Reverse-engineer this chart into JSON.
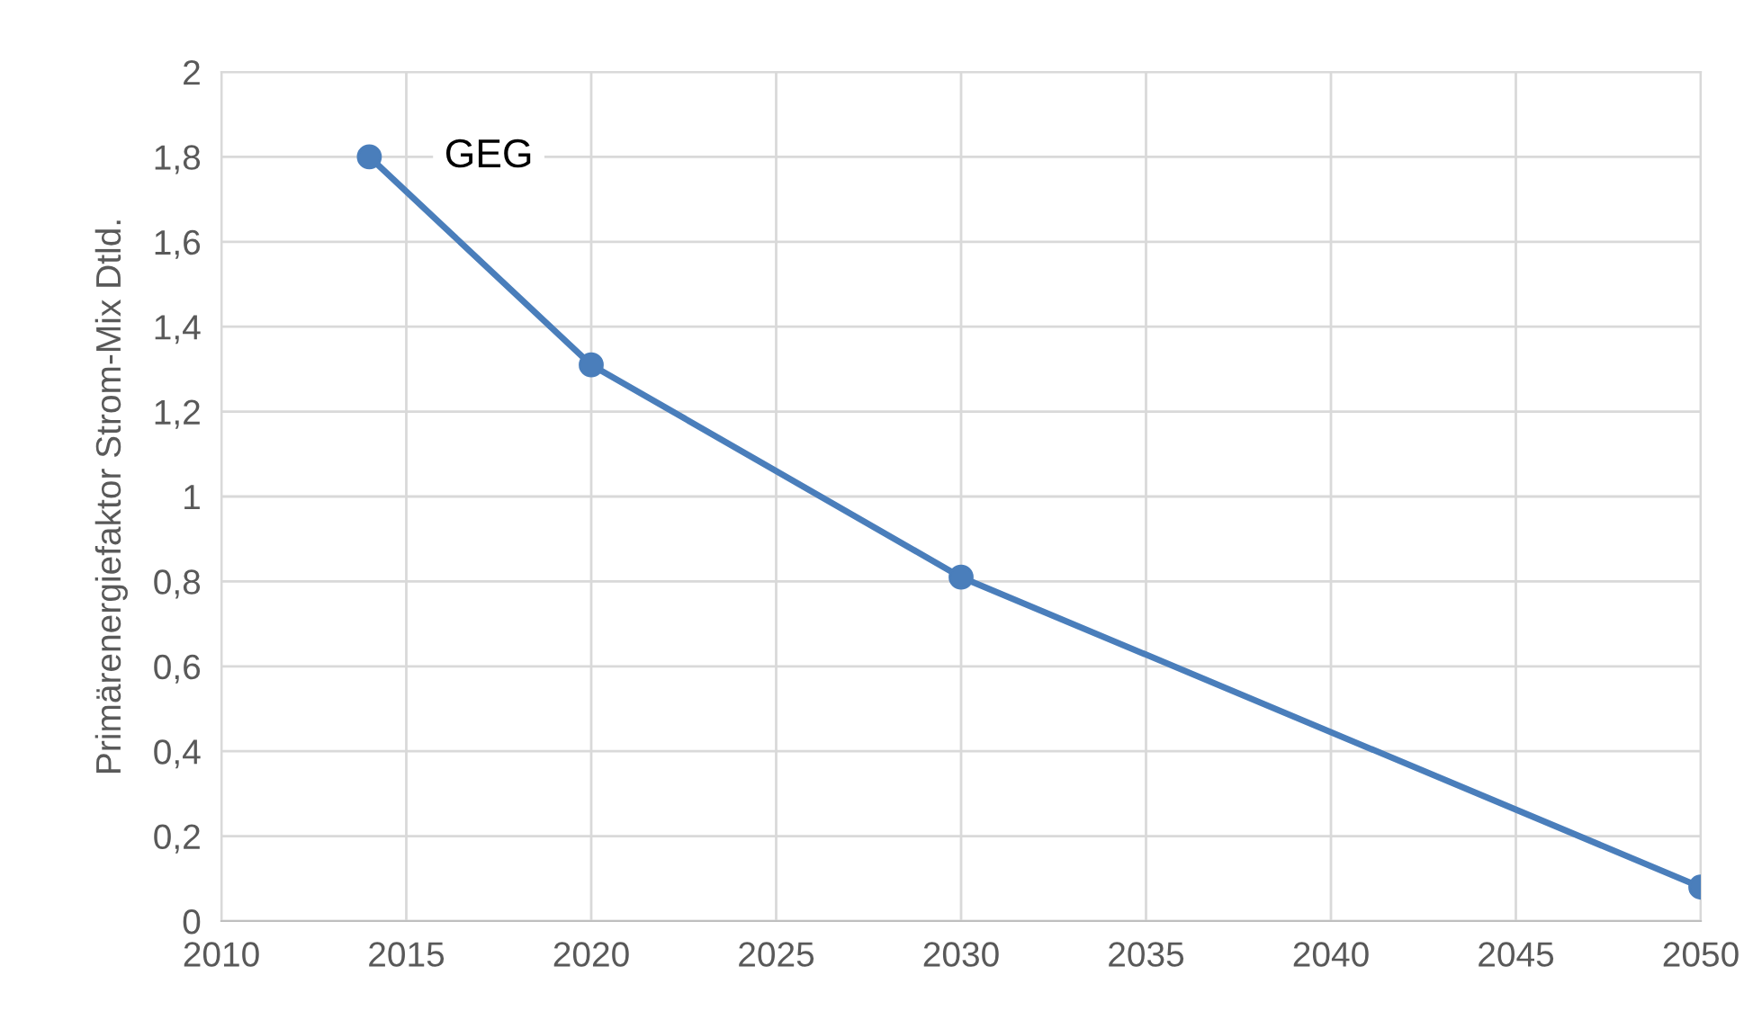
{
  "chart_data": {
    "type": "line",
    "ylabel": "Primärenergiefaktor Strom-Mix Dtld.",
    "x": [
      2014,
      2020,
      2030,
      2050
    ],
    "series": [
      {
        "color": "#4a7ebb",
        "values": [
          1.8,
          1.31,
          0.81,
          0.08
        ]
      }
    ],
    "xlim": [
      2010,
      2050
    ],
    "xticks": [
      2010,
      2015,
      2020,
      2025,
      2030,
      2035,
      2040,
      2045,
      2050
    ],
    "ylim": [
      0,
      2
    ],
    "yticks": [
      0,
      {
        "value": 0.2,
        "label": "0,2"
      },
      {
        "value": 0.4,
        "label": "0,4"
      },
      {
        "value": 0.6,
        "label": "0,6"
      },
      {
        "value": 0.8,
        "label": "0,8"
      },
      1,
      {
        "value": 1.2,
        "label": "1,2"
      },
      {
        "value": 1.4,
        "label": "1,4"
      },
      {
        "value": 1.6,
        "label": "1,6"
      },
      {
        "value": 1.8,
        "label": "1,8"
      },
      2
    ],
    "grid": true,
    "marker": "circle",
    "line_style": "solid",
    "annotations": [
      {
        "text": "GEG",
        "x": 2014,
        "y": 1.8
      }
    ]
  }
}
